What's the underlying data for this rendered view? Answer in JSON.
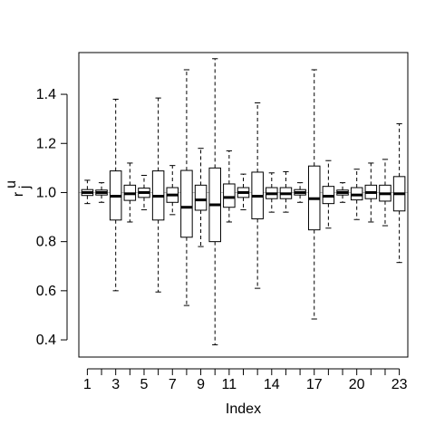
{
  "chart_data": {
    "type": "box",
    "xlabel": "Index",
    "ylabel": "r",
    "ylabel_superscript": "u",
    "ylabel_subscript": "j",
    "ylim": [
      0.33,
      1.57
    ],
    "xlim": [
      0.4,
      23.6
    ],
    "y_ticks": [
      "0.4",
      "0.6",
      "0.8",
      "1.0",
      "1.2",
      "1.4"
    ],
    "y_tick_values": [
      0.4,
      0.6,
      0.8,
      1.0,
      1.2,
      1.4
    ],
    "x_tick_positions": [
      1,
      2,
      3,
      4,
      5,
      6,
      7,
      8,
      9,
      10,
      11,
      12,
      13,
      14,
      15,
      16,
      17,
      18,
      19,
      20,
      21,
      22,
      23
    ],
    "x_tick_labels": [
      "1",
      "3",
      "5",
      "7",
      "9",
      "11",
      "14",
      "17",
      "20",
      "23"
    ],
    "x_tick_label_positions": [
      1,
      3,
      5,
      7,
      9,
      11,
      14,
      17,
      20,
      23
    ],
    "reference_line": 1.0,
    "grid": false,
    "boxes": [
      {
        "index": 1,
        "whisker_low": 0.955,
        "q1": 0.988,
        "median": 1.0,
        "q3": 1.012,
        "whisker_high": 1.05
      },
      {
        "index": 2,
        "whisker_low": 0.96,
        "q1": 0.99,
        "median": 1.0,
        "q3": 1.01,
        "whisker_high": 1.04
      },
      {
        "index": 3,
        "whisker_low": 0.6,
        "q1": 0.888,
        "median": 0.985,
        "q3": 1.088,
        "whisker_high": 1.38
      },
      {
        "index": 4,
        "whisker_low": 0.88,
        "q1": 0.968,
        "median": 0.995,
        "q3": 1.03,
        "whisker_high": 1.12
      },
      {
        "index": 5,
        "whisker_low": 0.93,
        "q1": 0.98,
        "median": 1.0,
        "q3": 1.018,
        "whisker_high": 1.07
      },
      {
        "index": 6,
        "whisker_low": 0.595,
        "q1": 0.888,
        "median": 0.985,
        "q3": 1.088,
        "whisker_high": 1.385
      },
      {
        "index": 7,
        "whisker_low": 0.91,
        "q1": 0.96,
        "median": 0.99,
        "q3": 1.02,
        "whisker_high": 1.11
      },
      {
        "index": 8,
        "whisker_low": 0.54,
        "q1": 0.818,
        "median": 0.94,
        "q3": 1.09,
        "whisker_high": 1.5
      },
      {
        "index": 9,
        "whisker_low": 0.78,
        "q1": 0.928,
        "median": 0.97,
        "q3": 1.03,
        "whisker_high": 1.18
      },
      {
        "index": 10,
        "whisker_low": 0.38,
        "q1": 0.8,
        "median": 0.95,
        "q3": 1.1,
        "whisker_high": 1.545
      },
      {
        "index": 11,
        "whisker_low": 0.88,
        "q1": 0.94,
        "median": 0.98,
        "q3": 1.035,
        "whisker_high": 1.17
      },
      {
        "index": 12,
        "whisker_low": 0.93,
        "q1": 0.98,
        "median": 1.0,
        "q3": 1.02,
        "whisker_high": 1.075
      },
      {
        "index": 13,
        "whisker_low": 0.61,
        "q1": 0.893,
        "median": 0.985,
        "q3": 1.083,
        "whisker_high": 1.365
      },
      {
        "index": 14,
        "whisker_low": 0.92,
        "q1": 0.975,
        "median": 0.995,
        "q3": 1.02,
        "whisker_high": 1.08
      },
      {
        "index": 15,
        "whisker_low": 0.92,
        "q1": 0.975,
        "median": 0.995,
        "q3": 1.02,
        "whisker_high": 1.085
      },
      {
        "index": 16,
        "whisker_low": 0.96,
        "q1": 0.99,
        "median": 1.0,
        "q3": 1.012,
        "whisker_high": 1.04
      },
      {
        "index": 17,
        "whisker_low": 0.485,
        "q1": 0.848,
        "median": 0.975,
        "q3": 1.108,
        "whisker_high": 1.5
      },
      {
        "index": 18,
        "whisker_low": 0.855,
        "q1": 0.955,
        "median": 0.985,
        "q3": 1.025,
        "whisker_high": 1.13
      },
      {
        "index": 19,
        "whisker_low": 0.96,
        "q1": 0.99,
        "median": 1.0,
        "q3": 1.01,
        "whisker_high": 1.04
      },
      {
        "index": 20,
        "whisker_low": 0.89,
        "q1": 0.97,
        "median": 0.99,
        "q3": 1.02,
        "whisker_high": 1.095
      },
      {
        "index": 21,
        "whisker_low": 0.88,
        "q1": 0.975,
        "median": 1.0,
        "q3": 1.03,
        "whisker_high": 1.12
      },
      {
        "index": 22,
        "whisker_low": 0.865,
        "q1": 0.965,
        "median": 0.995,
        "q3": 1.03,
        "whisker_high": 1.135
      },
      {
        "index": 23,
        "whisker_low": 0.715,
        "q1": 0.925,
        "median": 0.995,
        "q3": 1.065,
        "whisker_high": 1.28
      }
    ],
    "colors": {
      "box_fill": "#ffffff",
      "box_stroke": "#000000",
      "reference_line": "#bebebe"
    }
  }
}
